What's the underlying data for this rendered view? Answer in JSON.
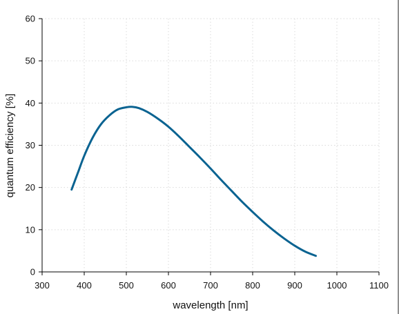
{
  "chart_data": {
    "type": "line",
    "title": "",
    "xlabel": "wavelength [nm]",
    "ylabel": "quantum efficiency [%]",
    "xlim": [
      300,
      1100
    ],
    "ylim": [
      0,
      60
    ],
    "xticks": [
      300,
      400,
      500,
      600,
      700,
      800,
      900,
      1000,
      1100
    ],
    "yticks": [
      0,
      10,
      20,
      30,
      40,
      50,
      60
    ],
    "grid": true,
    "colors": {
      "series": "#0a6391",
      "axis": "#000000",
      "grid": "#d9d9d9"
    },
    "series": [
      {
        "x": [
          370,
          385,
          400,
          420,
          440,
          460,
          480,
          500,
          515,
          530,
          550,
          575,
          600,
          625,
          650,
          675,
          700,
          725,
          750,
          775,
          800,
          825,
          850,
          875,
          900,
          925,
          950
        ],
        "y": [
          19.5,
          23.5,
          27.5,
          31.8,
          35.0,
          37.1,
          38.5,
          39.0,
          39.1,
          38.8,
          37.9,
          36.3,
          34.4,
          32.1,
          29.6,
          27.1,
          24.5,
          21.8,
          19.2,
          16.6,
          14.2,
          11.9,
          9.8,
          7.9,
          6.2,
          4.8,
          3.8
        ]
      }
    ]
  }
}
